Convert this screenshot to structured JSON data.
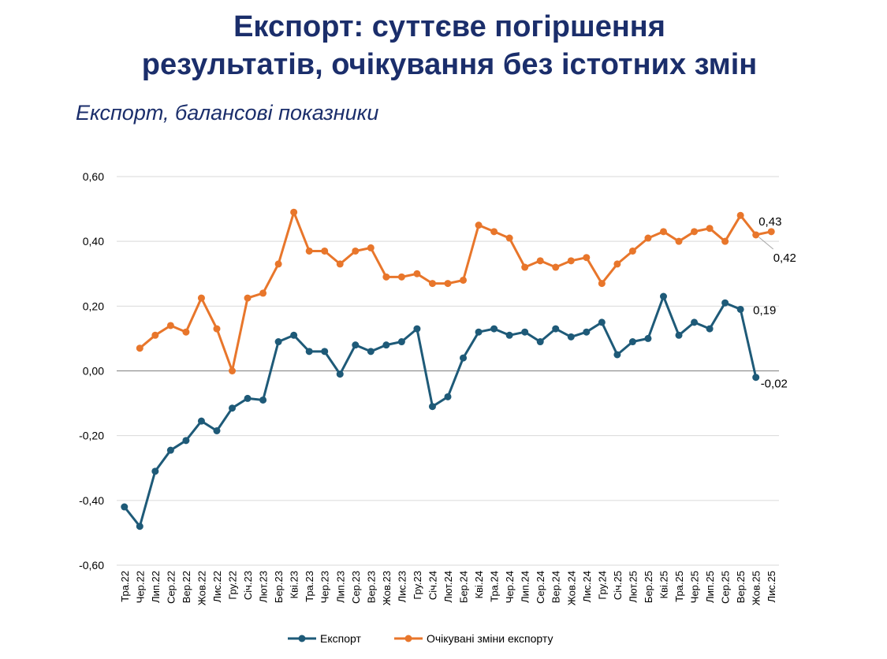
{
  "header": {
    "title_line1": "Експорт: суттєве погіршення",
    "title_line2": "результатів, очікування без істотних змін",
    "subtitle": "Експорт, балансові показники"
  },
  "colors": {
    "title": "#1b2e6b",
    "export": "#1e5a78",
    "expected": "#e8762b",
    "grid": "#d9d9d9",
    "zero_line": "#7f7f7f"
  },
  "chart_data": {
    "type": "line",
    "title": "Експорт, балансові показники",
    "ylim": [
      -0.6,
      0.6
    ],
    "yticks": [
      0.6,
      0.4,
      0.2,
      0.0,
      -0.2,
      -0.4,
      -0.6
    ],
    "ytick_labels": [
      "0,60",
      "0,40",
      "0,20",
      "0,00",
      "-0,20",
      "-0,40",
      "-0,60"
    ],
    "grid": true,
    "legend_position": "bottom",
    "categories": [
      "Тра.22",
      "Чер.22",
      "Лип.22",
      "Сер.22",
      "Вер.22",
      "Жов.22",
      "Лис.22",
      "Гру.22",
      "Січ.23",
      "Лют.23",
      "Бер.23",
      "Кві.23",
      "Тра.23",
      "Чер.23",
      "Лип.23",
      "Сер.23",
      "Вер.23",
      "Жов.23",
      "Лис.23",
      "Гру.23",
      "Січ.24",
      "Лют.24",
      "Бер.24",
      "Кві.24",
      "Тра.24",
      "Чер.24",
      "Лип.24",
      "Сер.24",
      "Вер.24",
      "Жов.24",
      "Лис.24",
      "Гру.24",
      "Січ.25",
      "Лют.25",
      "Бер.25",
      "Кві.25",
      "Тра.25",
      "Чер.25",
      "Лип.25",
      "Сер.25",
      "Вер.25",
      "Жов.25",
      "Лис.25"
    ],
    "series": [
      {
        "name": "Експорт",
        "key": "export",
        "values": [
          -0.42,
          -0.48,
          -0.31,
          -0.245,
          -0.215,
          -0.155,
          -0.185,
          -0.115,
          -0.085,
          -0.09,
          0.09,
          0.11,
          0.06,
          0.06,
          -0.01,
          0.08,
          0.06,
          0.08,
          0.09,
          0.13,
          -0.11,
          -0.08,
          0.04,
          0.12,
          0.13,
          0.11,
          0.12,
          0.09,
          0.13,
          0.105,
          0.12,
          0.15,
          0.05,
          0.09,
          0.1,
          0.23,
          0.11,
          0.15,
          0.13,
          0.21,
          0.19,
          -0.02,
          null
        ],
        "labels": [
          {
            "index": 40,
            "text": "0,19"
          },
          {
            "index": 41,
            "text": "-0,02"
          }
        ]
      },
      {
        "name": "Очікувані зміни експорту",
        "key": "expected",
        "values": [
          null,
          0.07,
          0.11,
          0.14,
          0.12,
          0.225,
          0.13,
          0.0,
          0.225,
          0.24,
          0.33,
          0.49,
          0.37,
          0.37,
          0.33,
          0.37,
          0.38,
          0.29,
          0.29,
          0.3,
          0.27,
          0.27,
          0.28,
          0.45,
          0.43,
          0.41,
          0.32,
          0.34,
          0.32,
          0.34,
          0.35,
          0.27,
          0.33,
          0.37,
          0.41,
          0.43,
          0.4,
          0.43,
          0.44,
          0.4,
          0.48,
          0.42,
          0.43
        ],
        "labels": [
          {
            "index": 42,
            "text": "0,43"
          },
          {
            "index": 41,
            "text": "0,42"
          }
        ]
      }
    ]
  }
}
